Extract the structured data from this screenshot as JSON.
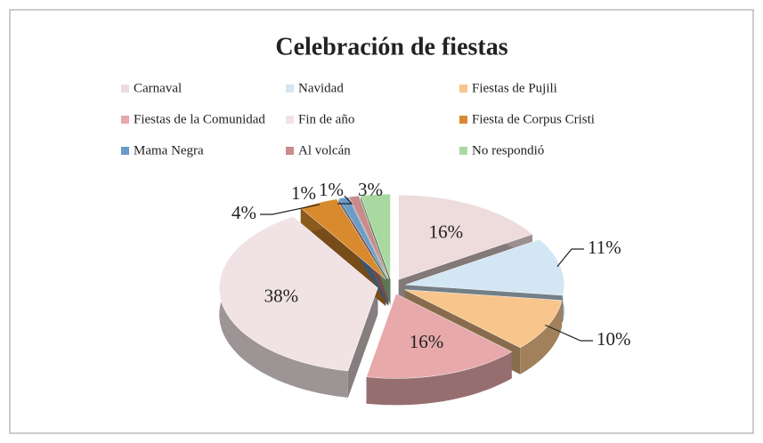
{
  "chart_data": {
    "type": "pie3d",
    "title": "Celebración de fiestas",
    "categories": [
      "Carnaval",
      "Navidad",
      "Fiestas de Pujili",
      "Fiestas de la Comunidad",
      "Fin de año",
      "Fiesta de Corpus Cristi",
      "Mama Negra",
      "Al volcán",
      "No respondió"
    ],
    "values": [
      16,
      11,
      10,
      16,
      38,
      4,
      1,
      1,
      3
    ],
    "value_labels": [
      "16%",
      "11%",
      "10%",
      "16%",
      "38%",
      "4%",
      "1%",
      "1%",
      "3%"
    ],
    "colors": [
      "#eedcdc",
      "#d3e6f4",
      "#f8c58c",
      "#e7a9aa",
      "#f1e3e5",
      "#d98a2e",
      "#6b9bc9",
      "#c98c8c",
      "#a9d9a1"
    ],
    "legend": "top"
  }
}
